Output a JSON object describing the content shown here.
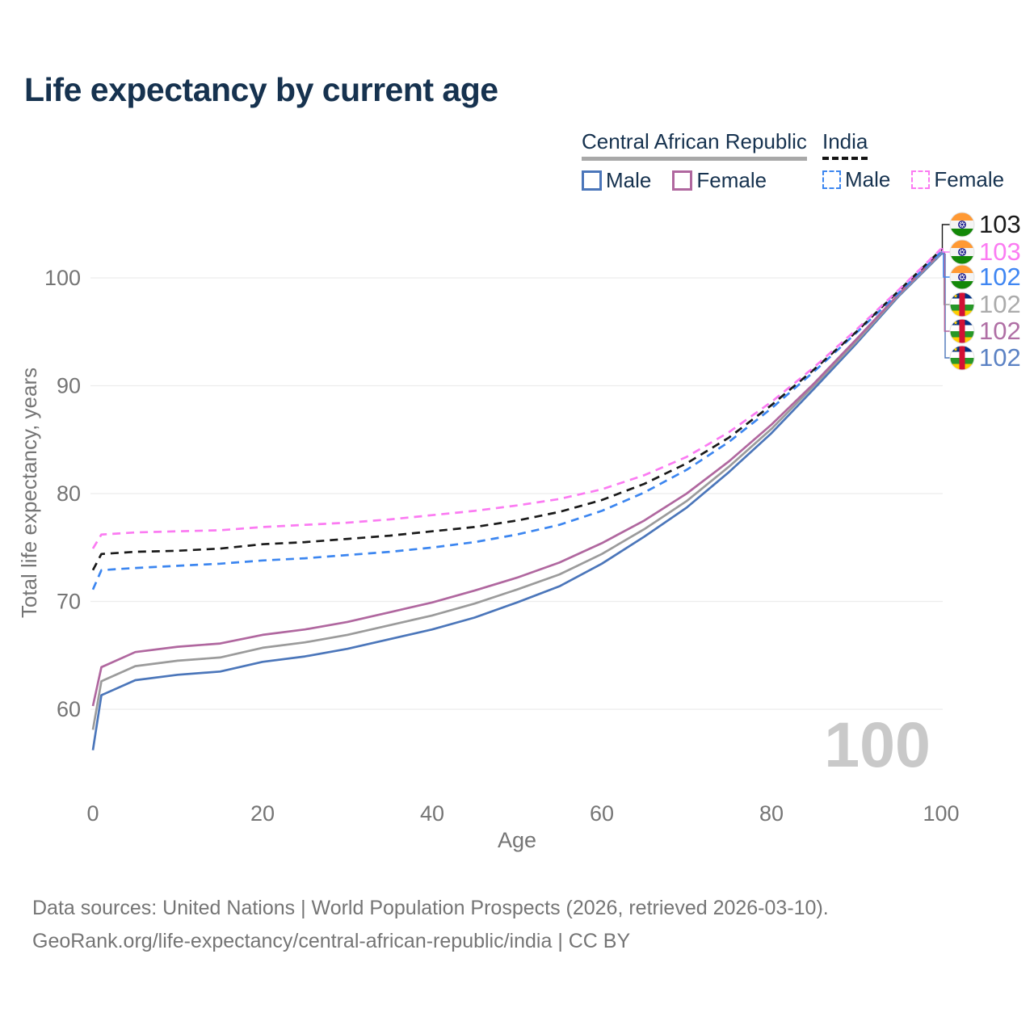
{
  "title": "Life expectancy by current age",
  "watermark": "100",
  "legend": {
    "groups": [
      {
        "label": "Central African Republic",
        "line_style": "solid",
        "underline_color": "#a8a8a8",
        "items": [
          {
            "label": "Male",
            "color": "#4b76ba"
          },
          {
            "label": "Female",
            "color": "#b0679f"
          }
        ]
      },
      {
        "label": "India",
        "line_style": "dashed",
        "underline_color": "#141414",
        "items": [
          {
            "label": "Male",
            "color": "#3c86f0"
          },
          {
            "label": "Female",
            "color": "#fb7bf2"
          }
        ]
      }
    ]
  },
  "footer": {
    "line1": "Data sources: United Nations | World Population Prospects (2026, retrieved 2026-03-10).",
    "line2": "GeoRank.org/life-expectancy/central-african-republic/india | CC BY"
  },
  "chart_data": {
    "type": "line",
    "title": "Life expectancy by current age",
    "xlabel": "Age",
    "ylabel": "Total life expectancy, years",
    "xlim": [
      0,
      100
    ],
    "ylim": [
      55,
      105
    ],
    "x_ticks": [
      0,
      20,
      40,
      60,
      80,
      100
    ],
    "y_ticks": [
      60,
      70,
      80,
      90,
      100
    ],
    "grid": "horizontal",
    "legend_position": "top-right",
    "x": [
      0,
      1,
      5,
      10,
      15,
      20,
      25,
      30,
      35,
      40,
      45,
      50,
      55,
      60,
      65,
      70,
      75,
      80,
      85,
      90,
      95,
      100
    ],
    "series": [
      {
        "id": "car_male",
        "name": "Central African Republic — Male",
        "country": "Central African Republic",
        "sex": "Male",
        "color": "#4b76ba",
        "dash": "solid",
        "flag": "car",
        "row": 5,
        "end_label": "102",
        "end_label_color": "#5b82c4",
        "values": [
          56.2,
          61.3,
          62.7,
          63.2,
          63.5,
          64.4,
          64.9,
          65.6,
          66.5,
          67.4,
          68.5,
          69.9,
          71.4,
          73.5,
          76.0,
          78.7,
          82.0,
          85.6,
          89.7,
          93.9,
          98.3,
          102.2
        ]
      },
      {
        "id": "car_total",
        "name": "Central African Republic — Total",
        "country": "Central African Republic",
        "sex": "Both",
        "color": "#9b9b9b",
        "dash": "solid",
        "flag": "car",
        "row": 3,
        "end_label": "102",
        "end_label_color": "#ababab",
        "values": [
          58.1,
          62.6,
          64.0,
          64.5,
          64.8,
          65.7,
          66.2,
          66.9,
          67.8,
          68.7,
          69.8,
          71.1,
          72.5,
          74.4,
          76.7,
          79.3,
          82.5,
          86.0,
          90.0,
          94.1,
          98.4,
          102.3
        ]
      },
      {
        "id": "car_female",
        "name": "Central African Republic — Female",
        "country": "Central African Republic",
        "sex": "Female",
        "color": "#b0679f",
        "dash": "solid",
        "flag": "car",
        "row": 4,
        "end_label": "102",
        "end_label_color": "#b06fa5",
        "values": [
          60.3,
          63.9,
          65.3,
          65.8,
          66.1,
          66.9,
          67.4,
          68.1,
          69.0,
          69.9,
          71.0,
          72.2,
          73.6,
          75.4,
          77.5,
          80.0,
          83.0,
          86.4,
          90.2,
          94.3,
          98.5,
          102.4
        ]
      },
      {
        "id": "india_male",
        "name": "India — Male",
        "country": "India",
        "sex": "Male",
        "color": "#3c86f0",
        "dash": "dashed",
        "flag": "india",
        "row": 2,
        "end_label": "102",
        "end_label_color": "#3f86f2",
        "values": [
          71.1,
          72.9,
          73.1,
          73.3,
          73.5,
          73.8,
          74.0,
          74.3,
          74.6,
          75.0,
          75.5,
          76.2,
          77.1,
          78.4,
          80.1,
          82.2,
          84.8,
          87.9,
          91.3,
          94.9,
          98.6,
          102.4
        ]
      },
      {
        "id": "india_total",
        "name": "India — Total",
        "country": "India",
        "sex": "Both",
        "color": "#1a1a1a",
        "dash": "dashed",
        "flag": "india",
        "row": 0,
        "end_label": "103",
        "end_label_color": "#1a1a1a",
        "values": [
          72.9,
          74.4,
          74.6,
          74.7,
          74.9,
          75.3,
          75.5,
          75.8,
          76.1,
          76.5,
          76.9,
          77.5,
          78.3,
          79.4,
          80.9,
          82.8,
          85.2,
          88.2,
          91.5,
          95.0,
          98.8,
          102.6
        ]
      },
      {
        "id": "india_female",
        "name": "India — Female",
        "country": "India",
        "sex": "Female",
        "color": "#fb7bf2",
        "dash": "dashed",
        "flag": "india",
        "row": 1,
        "end_label": "103",
        "end_label_color": "#fb7bf2",
        "values": [
          74.9,
          76.2,
          76.4,
          76.5,
          76.6,
          76.9,
          77.1,
          77.3,
          77.6,
          78.0,
          78.4,
          78.9,
          79.5,
          80.4,
          81.7,
          83.4,
          85.7,
          88.5,
          91.7,
          95.2,
          98.9,
          102.7
        ]
      }
    ]
  }
}
